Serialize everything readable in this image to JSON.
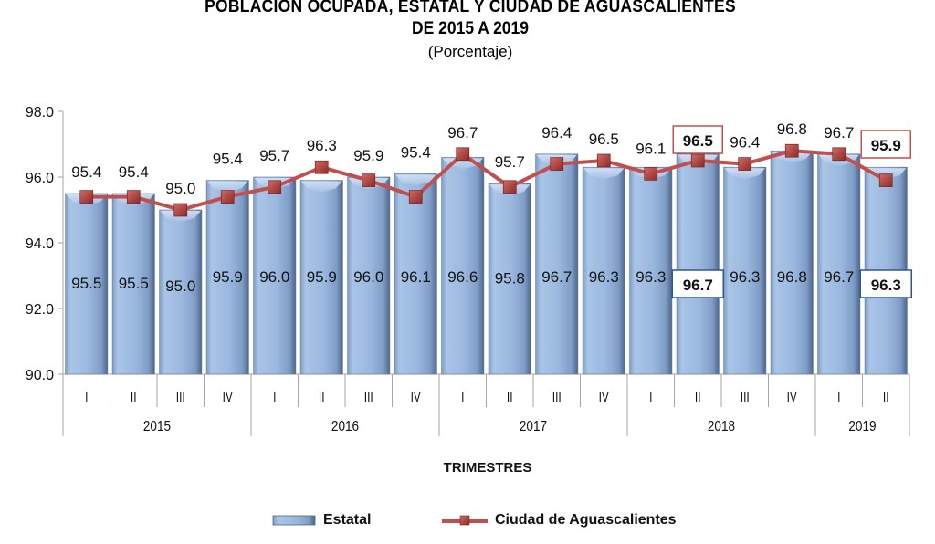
{
  "chart_data": {
    "type": "bar",
    "title": "POBLACION  OCUPADA,  ESTATAL  Y CIUDAD  DE AGUASCALIENTES",
    "subtitle": "DE 2015  A 2019",
    "unit_label": "(Porcentaje)",
    "xlabel": "TRIMESTRES",
    "ylabel": "",
    "ylim": [
      90.0,
      98.0
    ],
    "yticks": [
      "90.0",
      "92.0",
      "94.0",
      "96.0",
      "98.0"
    ],
    "ytick_values": [
      90,
      92,
      94,
      96,
      98
    ],
    "grid": false,
    "legend_position": "bottom",
    "categories": [
      "I",
      "II",
      "III",
      "IV",
      "I",
      "II",
      "III",
      "IV",
      "I",
      "II",
      "III",
      "IV",
      "I",
      "II",
      "III",
      "IV",
      "I",
      "II"
    ],
    "years": [
      {
        "label": "2015",
        "count": 4
      },
      {
        "label": "2016",
        "count": 4
      },
      {
        "label": "2017",
        "count": 4
      },
      {
        "label": "2018",
        "count": 4
      },
      {
        "label": "2019",
        "count": 2
      }
    ],
    "series": [
      {
        "name": "Estatal",
        "type": "bar",
        "color": "#9ab8de",
        "values": [
          95.5,
          95.5,
          95.0,
          95.9,
          96.0,
          95.9,
          96.0,
          96.1,
          96.6,
          95.8,
          96.7,
          96.3,
          96.3,
          96.7,
          96.3,
          96.8,
          96.7,
          96.3
        ],
        "labels": [
          "95.5",
          "95.5",
          "95.0",
          "95.9",
          "96.0",
          "95.9",
          "96.0",
          "96.1",
          "96.6",
          "95.8",
          "96.7",
          "96.3",
          "96.3",
          "96.7",
          "96.3",
          "96.8",
          "96.7",
          "96.3"
        ],
        "highlighted_indices": [
          13,
          17
        ],
        "highlight_border_color": "#2f5597"
      },
      {
        "name": "Ciudad de Aguascalientes",
        "type": "line",
        "color": "#c0504d",
        "values": [
          95.4,
          95.4,
          95.0,
          95.4,
          95.7,
          96.3,
          95.9,
          95.4,
          96.7,
          95.7,
          96.4,
          96.5,
          96.1,
          96.5,
          96.4,
          96.8,
          96.7,
          95.9
        ],
        "labels": [
          "95.4",
          "95.4",
          "95.0",
          "95.4",
          "95.7",
          "96.3",
          "95.9",
          "95.4",
          "96.7",
          "95.7",
          "96.4",
          "96.5",
          "96.1",
          "96.5",
          "96.4",
          "96.8",
          "96.7",
          "95.9"
        ],
        "highlighted_indices": [
          13,
          17
        ],
        "highlight_border_color": "#c0504d"
      }
    ]
  }
}
